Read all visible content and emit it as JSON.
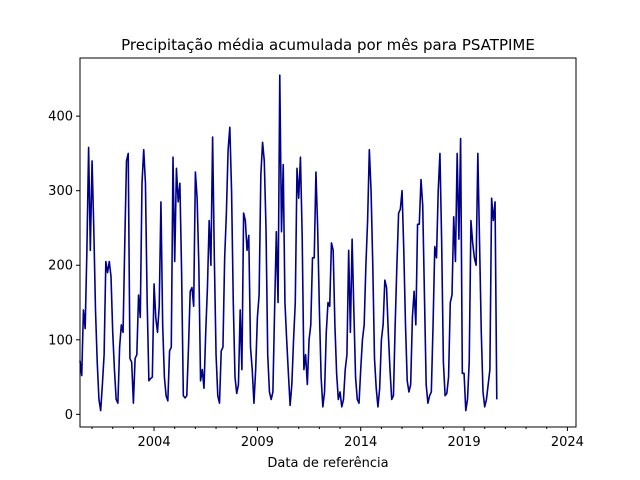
{
  "chart_data": {
    "type": "line",
    "title": "Precipitação média acumulada por mês para PSATPIME",
    "xlabel": "Data de referência",
    "ylabel": "",
    "x_start": "2000-06",
    "x_end": "2024-06",
    "xlim": [
      "2000-06",
      "2024-06"
    ],
    "ylim": [
      -17,
      478
    ],
    "xticks": [
      "2004",
      "2009",
      "2014",
      "2019",
      "2024"
    ],
    "yticks": [
      0,
      100,
      200,
      300,
      400
    ],
    "grid": false,
    "legend": "none",
    "color": "#00008b",
    "series": [
      {
        "values": [
          72,
          52,
          140,
          115,
          220,
          358,
          220,
          340,
          250,
          140,
          70,
          20,
          5,
          40,
          80,
          205,
          190,
          205,
          185,
          110,
          60,
          20,
          15,
          90,
          120,
          110,
          230,
          340,
          350,
          75,
          70,
          15,
          75,
          80,
          160,
          130,
          310,
          355,
          310,
          150,
          45,
          48,
          50,
          175,
          130,
          110,
          145,
          285,
          120,
          50,
          25,
          18,
          85,
          90,
          345,
          205,
          330,
          285,
          310,
          190,
          25,
          22,
          25,
          90,
          165,
          170,
          145,
          325,
          290,
          200,
          45,
          60,
          35,
          110,
          170,
          260,
          200,
          372,
          210,
          80,
          25,
          15,
          85,
          90,
          210,
          270,
          355,
          385,
          300,
          150,
          50,
          28,
          40,
          140,
          60,
          270,
          260,
          220,
          240,
          90,
          60,
          15,
          60,
          130,
          160,
          320,
          365,
          340,
          250,
          80,
          30,
          20,
          30,
          140,
          245,
          150,
          455,
          245,
          335,
          150,
          100,
          55,
          12,
          40,
          100,
          150,
          330,
          290,
          345,
          240,
          60,
          80,
          40,
          100,
          120,
          210,
          210,
          325,
          250,
          140,
          50,
          10,
          30,
          110,
          150,
          145,
          230,
          220,
          120,
          55,
          20,
          30,
          10,
          20,
          60,
          80,
          220,
          110,
          235,
          140,
          50,
          20,
          15,
          60,
          100,
          120,
          200,
          260,
          355,
          300,
          200,
          75,
          35,
          10,
          35,
          100,
          120,
          180,
          170,
          110,
          60,
          20,
          25,
          120,
          200,
          270,
          275,
          300,
          220,
          120,
          45,
          30,
          40,
          130,
          165,
          120,
          255,
          255,
          315,
          280,
          160,
          40,
          15,
          25,
          30,
          120,
          225,
          210,
          300,
          350,
          230,
          70,
          25,
          28,
          50,
          150,
          160,
          265,
          205,
          350,
          235,
          370,
          55,
          55,
          5,
          20,
          70,
          260,
          230,
          210,
          200,
          350,
          230,
          110,
          30,
          10,
          20,
          40,
          60,
          290,
          260,
          285,
          20
        ]
      }
    ]
  }
}
